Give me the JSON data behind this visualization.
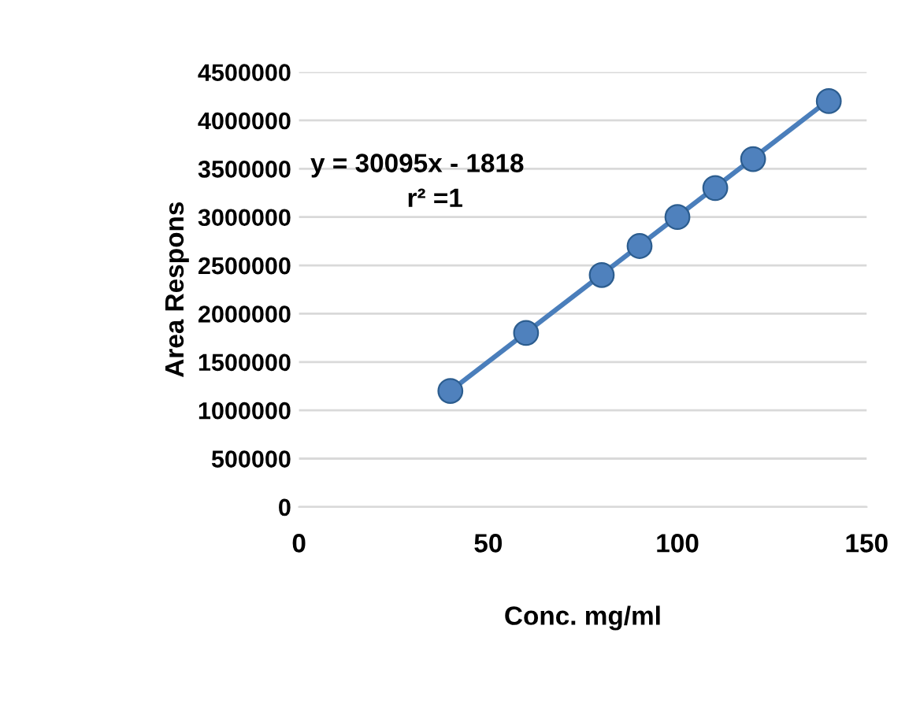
{
  "chart_data": {
    "type": "scatter",
    "xlabel": "Conc. mg/ml",
    "ylabel": "Area Respons",
    "x": [
      40,
      60,
      80,
      90,
      100,
      110,
      120,
      140
    ],
    "series": [
      {
        "color": "#4f81bd",
        "values": [
          1200000,
          1800000,
          2400000,
          2700000,
          3000000,
          3300000,
          3600000,
          4200000
        ],
        "marker": "circle"
      },
      {
        "type": "line",
        "color": "#4a7ebb",
        "x": [
          40,
          140
        ],
        "values": [
          1202000,
          4211000
        ],
        "marker": "none",
        "line_style": "solid"
      }
    ],
    "annotations": [
      "y = 30095x - 1818",
      "r² =1"
    ],
    "xlim": [
      0,
      150
    ],
    "xticks": [
      0,
      50,
      100,
      150
    ],
    "ylim": [
      0,
      4500000
    ],
    "yticks": [
      0,
      500000,
      1000000,
      1500000,
      2000000,
      2500000,
      3000000,
      3500000,
      4000000,
      4500000
    ],
    "grid": "y",
    "legend": false
  }
}
